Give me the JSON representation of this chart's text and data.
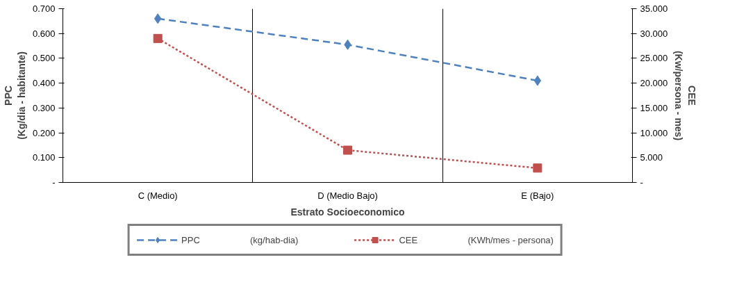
{
  "chart_data": {
    "type": "line",
    "xlabel": "Estrato Socioeconomico",
    "ylabel": "PPC\n(Kg/dia - habitante)",
    "y2label": "CEE\n(Kw/persona - mes)",
    "categories": [
      "C (Medio)",
      "D (Medio Bajo)",
      "E (Bajo)"
    ],
    "series": [
      {
        "name": "PPC                    (kg/hab-dia)",
        "color": "#4f81bd",
        "values": [
          0.66,
          0.555,
          0.41
        ],
        "marker": "diamond",
        "line_style": "dashed"
      },
      {
        "name": "CEE                    (KWh/mes - persona)",
        "color": "#c0504d",
        "values": [
          29.0,
          6.5,
          2.9
        ],
        "marker": "square",
        "line_style": "dotted",
        "axis": "y2"
      }
    ],
    "ylim": [
      0,
      0.7
    ],
    "yticks": [
      {
        "value": 0,
        "label": "-"
      },
      {
        "value": 0.1,
        "label": "0.100"
      },
      {
        "value": 0.2,
        "label": "0.200"
      },
      {
        "value": 0.3,
        "label": "0.300"
      },
      {
        "value": 0.4,
        "label": "0.400"
      },
      {
        "value": 0.5,
        "label": "0.500"
      },
      {
        "value": 0.6,
        "label": "0.600"
      },
      {
        "value": 0.7,
        "label": "0.700"
      }
    ],
    "y2lim": [
      0,
      35
    ],
    "y2ticks": [
      {
        "value": 0,
        "label": "-"
      },
      {
        "value": 5,
        "label": "5.000"
      },
      {
        "value": 10,
        "label": "10.000"
      },
      {
        "value": 15,
        "label": "15.000"
      },
      {
        "value": 20,
        "label": "20.000"
      },
      {
        "value": 25,
        "label": "25.000"
      },
      {
        "value": 30,
        "label": "30.000"
      },
      {
        "value": 35,
        "label": "35.000"
      }
    ],
    "grid": "x",
    "legend": "bottom"
  }
}
